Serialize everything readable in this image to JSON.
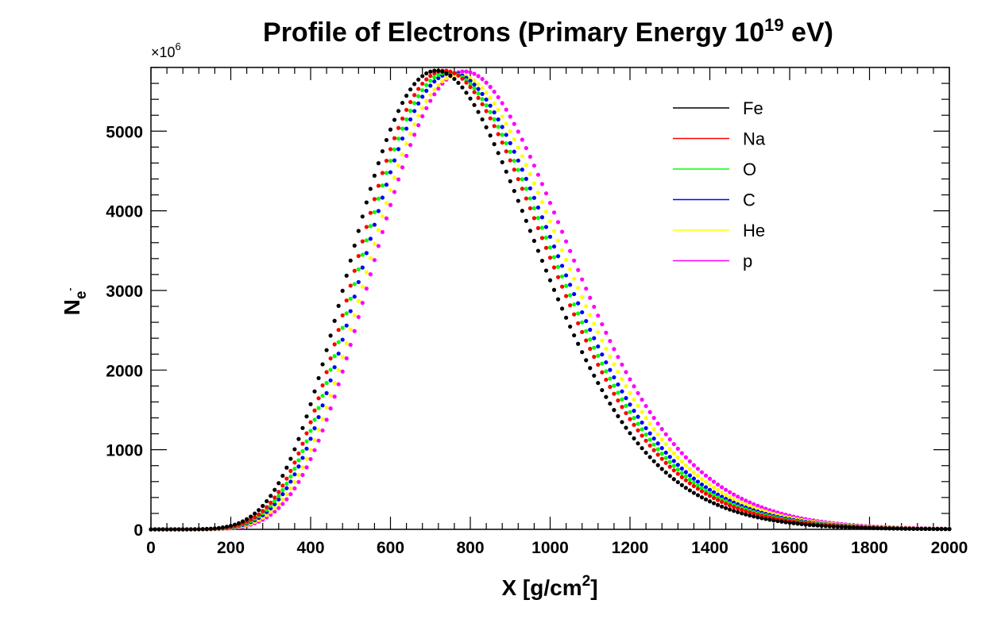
{
  "chart_data": {
    "type": "scatter",
    "title_main": "Profile of Electrons (Primary Energy 10",
    "title_sup": "19",
    "title_end": " eV)",
    "xlabel_main": "X [g/cm",
    "xlabel_sup": "2",
    "xlabel_end": "]",
    "ylabel_main": "N",
    "ylabel_sub": "e",
    "ylabel_subsup": "-",
    "y_multiplier_main": "×10",
    "y_multiplier_sup": "6",
    "xlim": [
      0,
      2000
    ],
    "ylim": [
      0,
      5800
    ],
    "x_ticks": [
      "0",
      "200",
      "400",
      "600",
      "800",
      "1000",
      "1200",
      "1400",
      "1600",
      "1800",
      "2000"
    ],
    "y_ticks": [
      "0",
      "1000",
      "2000",
      "3000",
      "4000",
      "5000"
    ],
    "grid": false,
    "legend_position": "top-right",
    "series": [
      {
        "name": "Fe",
        "color": "#000000",
        "xmax": 715,
        "nmax": 5760
      },
      {
        "name": "Na",
        "color": "#ff0000",
        "xmax": 735,
        "nmax": 5760
      },
      {
        "name": "O",
        "color": "#00ff00",
        "xmax": 745,
        "nmax": 5740
      },
      {
        "name": "C",
        "color": "#0000ff",
        "xmax": 755,
        "nmax": 5730
      },
      {
        "name": "He",
        "color": "#ffff00",
        "xmax": 770,
        "nmax": 5710
      },
      {
        "name": "p",
        "color": "#ff00ff",
        "xmax": 785,
        "nmax": 5750
      }
    ]
  }
}
